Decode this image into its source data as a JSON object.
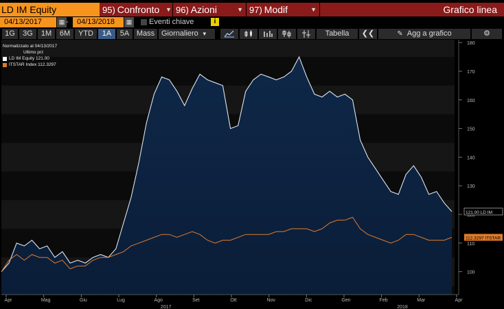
{
  "topbar": {
    "ticker": "LD IM Equity",
    "menus": [
      {
        "num": "95)",
        "label": "Confronto"
      },
      {
        "num": "96)",
        "label": "Azioni"
      },
      {
        "num": "97)",
        "label": "Modif"
      }
    ],
    "title": "Grafico linea"
  },
  "daterow": {
    "start_date": "04/13/2017",
    "separator": "-",
    "end_date": "04/13/2018",
    "key_events_label": "Eventi chiave",
    "info": "i"
  },
  "toolbar": {
    "periods": [
      "1G",
      "3G",
      "1M",
      "6M",
      "YTD",
      "1A",
      "5A",
      "Mass"
    ],
    "active_period": "1A",
    "frequency": "Giornaliero",
    "table_label": "Tabella",
    "add_label": "Agg a grafico",
    "icons": [
      "line-chart-icon",
      "candlestick-icon",
      "bar-chart-icon",
      "ohlc-icon",
      "crosshair-icon",
      "collapse-icon",
      "add-to-chart-icon",
      "gear-icon"
    ]
  },
  "legend": {
    "normalized": "Normalizzato al 04/13/2017",
    "subheader": "Ultimo prz",
    "items": [
      {
        "name": "LD IM Equity",
        "value": "121.00",
        "color": "#ffffff"
      },
      {
        "name": "ITSTAR Index",
        "value": "112.3297",
        "color": "#e07b2a"
      }
    ]
  },
  "chart_data": {
    "type": "area",
    "y_ticks": [
      "180",
      "170",
      "160",
      "150",
      "140",
      "130",
      "120",
      "110",
      "100"
    ],
    "ylim": [
      92,
      181
    ],
    "x_labels": [
      "Apr",
      "Mag",
      "Giu",
      "Lug",
      "Ago",
      "Set",
      "Ott",
      "Nov",
      "Dic",
      "Gen",
      "Feb",
      "Mar",
      "Apr"
    ],
    "year_labels": [
      "2017",
      "2018"
    ],
    "series": [
      {
        "name": "LD IM",
        "color": "#dfe6ef",
        "last_label": "121.00",
        "values": [
          100,
          103,
          110,
          109,
          111,
          108,
          109,
          105,
          107,
          103,
          104,
          103,
          105,
          106,
          105,
          108,
          117,
          126,
          138,
          152,
          162,
          168,
          167,
          163,
          158,
          164,
          169,
          167,
          166,
          165,
          150,
          151,
          163,
          167,
          169,
          168,
          167,
          168,
          170,
          175,
          168,
          162,
          161,
          163,
          161,
          162,
          160,
          146,
          140,
          136,
          132,
          128,
          127,
          134,
          137,
          133,
          127,
          128,
          124,
          121
        ]
      },
      {
        "name": "ITSTAR",
        "color": "#e07b2a",
        "last_label": "112.3297",
        "values": [
          100,
          104,
          106,
          104,
          106,
          105,
          105,
          103,
          104,
          101,
          102,
          102,
          104,
          105,
          105,
          106,
          107,
          109,
          110,
          111,
          112,
          113,
          113,
          112,
          113,
          114,
          113,
          111,
          110,
          111,
          111,
          112,
          113,
          113,
          113,
          113,
          114,
          114,
          115,
          115,
          115,
          114,
          115,
          117,
          118,
          118,
          119,
          115,
          113,
          112,
          111,
          110,
          111,
          113,
          113,
          112,
          111,
          111,
          111,
          112
        ]
      }
    ]
  }
}
